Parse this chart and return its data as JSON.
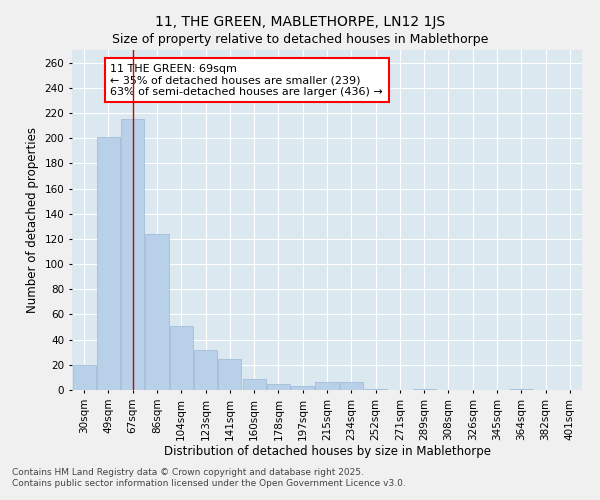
{
  "title": "11, THE GREEN, MABLETHORPE, LN12 1JS",
  "subtitle": "Size of property relative to detached houses in Mablethorpe",
  "xlabel": "Distribution of detached houses by size in Mablethorpe",
  "ylabel": "Number of detached properties",
  "footer_line1": "Contains HM Land Registry data © Crown copyright and database right 2025.",
  "footer_line2": "Contains public sector information licensed under the Open Government Licence v3.0.",
  "categories": [
    "30sqm",
    "49sqm",
    "67sqm",
    "86sqm",
    "104sqm",
    "123sqm",
    "141sqm",
    "160sqm",
    "178sqm",
    "197sqm",
    "215sqm",
    "234sqm",
    "252sqm",
    "271sqm",
    "289sqm",
    "308sqm",
    "326sqm",
    "345sqm",
    "364sqm",
    "382sqm",
    "401sqm"
  ],
  "values": [
    20,
    201,
    215,
    124,
    51,
    32,
    25,
    9,
    5,
    3,
    6,
    6,
    1,
    0,
    1,
    0,
    0,
    0,
    1,
    0,
    0
  ],
  "bar_color": "#b8d0e8",
  "bar_edge_color": "#9ab8d8",
  "vline_x_index": 2,
  "vline_color": "#cc0000",
  "annotation_title": "11 THE GREEN: 69sqm",
  "annotation_line1": "← 35% of detached houses are smaller (239)",
  "annotation_line2": "63% of semi-detached houses are larger (436) →",
  "ylim": [
    0,
    270
  ],
  "yticks": [
    0,
    20,
    40,
    60,
    80,
    100,
    120,
    140,
    160,
    180,
    200,
    220,
    240,
    260
  ],
  "fig_bg_color": "#f0f0f0",
  "plot_bg_color": "#dce8f0",
  "grid_color": "#ffffff",
  "title_fontsize": 10,
  "subtitle_fontsize": 9,
  "axis_label_fontsize": 8.5,
  "tick_fontsize": 7.5,
  "annotation_fontsize": 8,
  "footer_fontsize": 6.5
}
